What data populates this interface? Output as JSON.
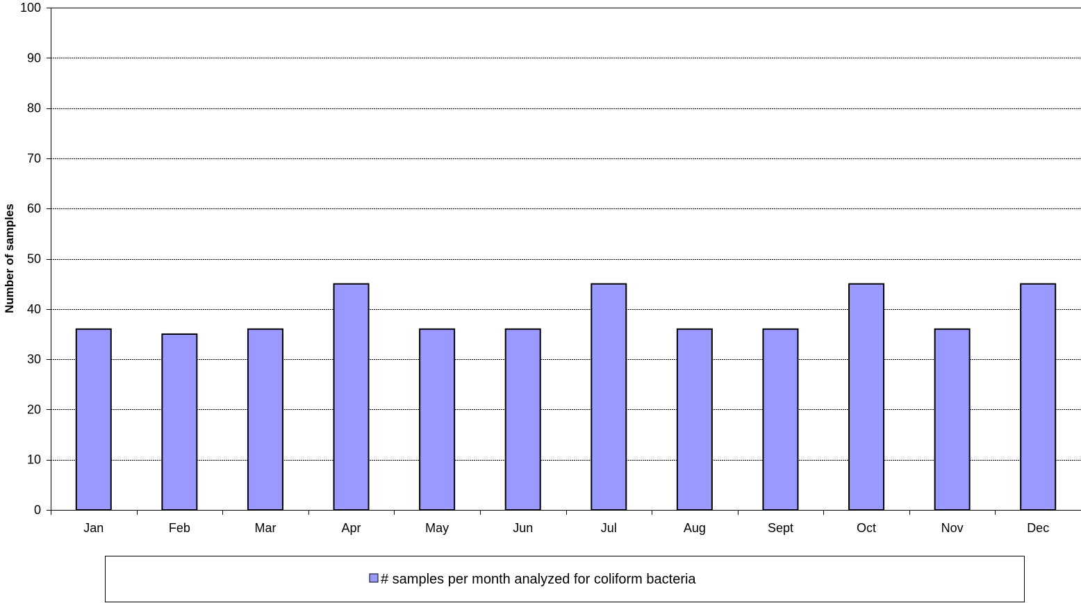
{
  "chart_data": {
    "type": "bar",
    "categories": [
      "Jan",
      "Feb",
      "Mar",
      "Apr",
      "May",
      "Jun",
      "Jul",
      "Aug",
      "Sept",
      "Oct",
      "Nov",
      "Dec"
    ],
    "series": [
      {
        "name": "# samples per month analyzed for coliform bacteria",
        "values": [
          36,
          35,
          36,
          45,
          36,
          36,
          45,
          36,
          36,
          45,
          36,
          45
        ],
        "color": "#9999ff"
      }
    ],
    "ylabel": "Number of samples",
    "xlabel": "",
    "ylim": [
      0,
      100
    ],
    "yticks": [
      0,
      10,
      20,
      30,
      40,
      50,
      60,
      70,
      80,
      90,
      100
    ],
    "grid": true,
    "legend_position": "bottom"
  }
}
